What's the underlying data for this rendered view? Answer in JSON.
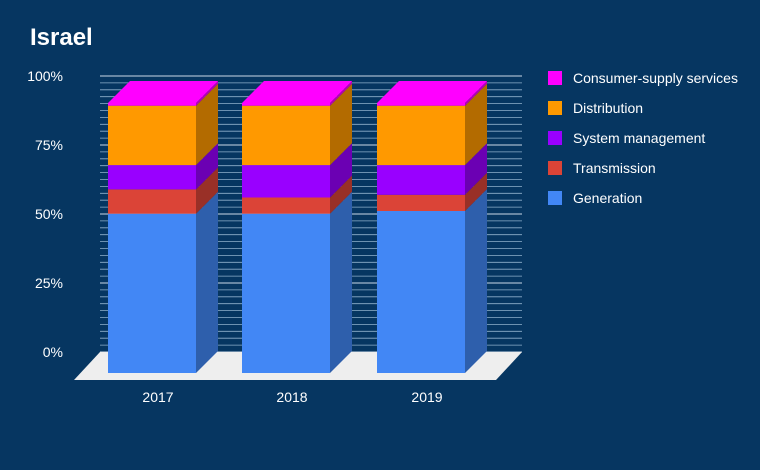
{
  "chart_data": {
    "type": "bar",
    "stacked": true,
    "title": "Israel",
    "categories": [
      "2017",
      "2018",
      "2019"
    ],
    "series": [
      {
        "name": "Generation",
        "color": "#4287f5",
        "values": [
          0.59,
          0.59,
          0.6
        ]
      },
      {
        "name": "Transmission",
        "color": "#db4437",
        "values": [
          0.09,
          0.06,
          0.06
        ]
      },
      {
        "name": "System management",
        "color": "#9900ff",
        "values": [
          0.09,
          0.12,
          0.11
        ]
      },
      {
        "name": "Distribution",
        "color": "#ff9900",
        "values": [
          0.22,
          0.22,
          0.22
        ]
      },
      {
        "name": "Consumer-supply services",
        "color": "#ff00ff",
        "values": [
          0.01,
          0.01,
          0.01
        ]
      }
    ],
    "y_ticks": [
      "0%",
      "25%",
      "50%",
      "75%",
      "100%"
    ],
    "ylim": [
      0,
      1
    ],
    "legend_position": "right",
    "three_d": true
  }
}
